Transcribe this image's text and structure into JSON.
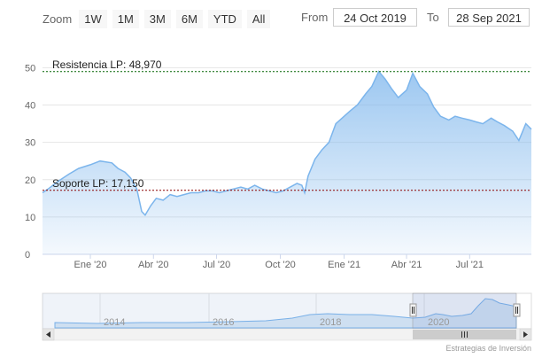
{
  "toolbar": {
    "zoom_label": "Zoom",
    "buttons": [
      "1W",
      "1M",
      "3M",
      "6M",
      "YTD",
      "All"
    ],
    "from_label": "From",
    "from_value": "24 Oct 2019",
    "to_label": "To",
    "to_value": "28 Sep 2021"
  },
  "credit": "Estrategias de Inversión",
  "colors": {
    "line": "#7cb5ec",
    "support": "#8b0000",
    "resistance": "#006400",
    "grid": "#e6e6e6"
  },
  "chart_data": {
    "type": "area",
    "x_ticks": [
      "Ene '20",
      "Abr '20",
      "Jul '20",
      "Oct '20",
      "Ene '21",
      "Abr '21",
      "Jul '21"
    ],
    "x_tick_dates": [
      "2020-01-01",
      "2020-04-01",
      "2020-07-01",
      "2020-10-01",
      "2021-01-01",
      "2021-04-01",
      "2021-07-01"
    ],
    "y_ticks": [
      0,
      10,
      20,
      30,
      40,
      50
    ],
    "xlim": [
      "2019-10-24",
      "2021-09-28"
    ],
    "ylim": [
      0,
      52
    ],
    "grid": true,
    "annotations": [
      {
        "label": "Resistencia LP: 48,970",
        "value": 48.97,
        "style": "dashed"
      },
      {
        "label": "Soporte LP: 17,150",
        "value": 17.15,
        "style": "dashed"
      }
    ],
    "series": [
      {
        "x": [
          "2019-10-24",
          "2019-11-01",
          "2019-11-15",
          "2019-12-01",
          "2019-12-15",
          "2020-01-01",
          "2020-01-15",
          "2020-02-01",
          "2020-02-10",
          "2020-02-20",
          "2020-02-28",
          "2020-03-08",
          "2020-03-15",
          "2020-03-20",
          "2020-03-28",
          "2020-04-05",
          "2020-04-15",
          "2020-04-25",
          "2020-05-05",
          "2020-05-15",
          "2020-05-25",
          "2020-06-05",
          "2020-06-15",
          "2020-06-25",
          "2020-07-05",
          "2020-07-15",
          "2020-07-25",
          "2020-08-05",
          "2020-08-15",
          "2020-08-25",
          "2020-09-05",
          "2020-09-15",
          "2020-09-25",
          "2020-10-05",
          "2020-10-15",
          "2020-10-25",
          "2020-11-01",
          "2020-11-05",
          "2020-11-10",
          "2020-11-20",
          "2020-11-30",
          "2020-12-10",
          "2020-12-20",
          "2021-01-01",
          "2021-01-10",
          "2021-01-20",
          "2021-02-01",
          "2021-02-10",
          "2021-02-20",
          "2021-03-01",
          "2021-03-10",
          "2021-03-20",
          "2021-04-01",
          "2021-04-10",
          "2021-04-20",
          "2021-05-01",
          "2021-05-10",
          "2021-05-20",
          "2021-06-01",
          "2021-06-10",
          "2021-06-20",
          "2021-07-01",
          "2021-07-10",
          "2021-07-20",
          "2021-08-01",
          "2021-08-10",
          "2021-08-20",
          "2021-09-01",
          "2021-09-10",
          "2021-09-20",
          "2021-09-28"
        ],
        "y": [
          16.5,
          17.5,
          19.5,
          21.5,
          23,
          24,
          25,
          24.5,
          23,
          22,
          20.5,
          17.5,
          11.5,
          10.5,
          13,
          15,
          14.5,
          16,
          15.5,
          16,
          16.5,
          16.5,
          17,
          17,
          16.5,
          17,
          17.5,
          18,
          17.5,
          18.5,
          17.5,
          17,
          16.5,
          17,
          18,
          19,
          18.5,
          16.5,
          21,
          25.5,
          28,
          30,
          35,
          37,
          38.5,
          40,
          43,
          45,
          49,
          47,
          44.5,
          42,
          44,
          48.5,
          45,
          43,
          39.5,
          37,
          36,
          37,
          36.5,
          36,
          35.5,
          35,
          36.5,
          35.5,
          34.5,
          33,
          30.5,
          35,
          33.5
        ]
      }
    ],
    "navigator": {
      "labels": [
        "2014",
        "2016",
        "2018",
        "2020"
      ],
      "selection": [
        "2019-10-24",
        "2021-09-28"
      ]
    }
  }
}
